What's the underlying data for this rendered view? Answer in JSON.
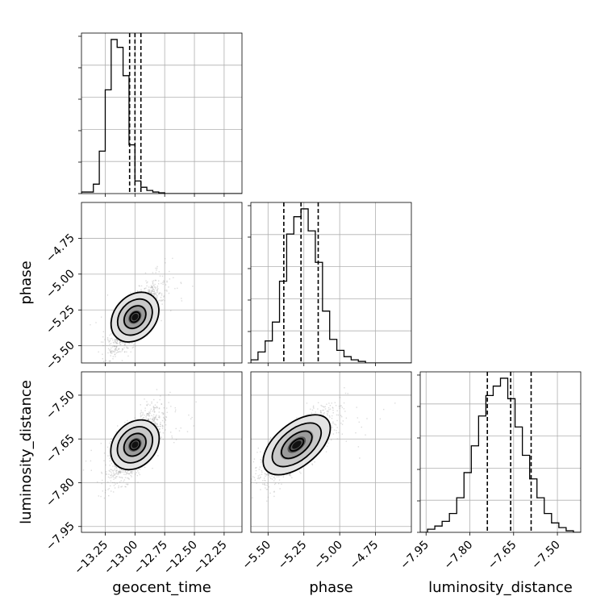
{
  "chart_data": {
    "type": "corner",
    "parameters": [
      {
        "name": "geocent_time",
        "label": "geocent_time",
        "range": [
          -13.45,
          -12.1
        ],
        "ticks": [
          -13.25,
          -13.0,
          -12.75,
          -12.5,
          -12.25
        ],
        "tick_labels": [
          "−13.25",
          "−13.00",
          "−12.75",
          "−12.50",
          "−12.25"
        ],
        "median": -13.0,
        "quantile_low": -13.045,
        "quantile_high": -12.95,
        "histogram": {
          "bin_edges": [
            -13.45,
            -13.4,
            -13.35,
            -13.3,
            -13.25,
            -13.2,
            -13.15,
            -13.1,
            -13.05,
            -13.0,
            -12.95,
            -12.9,
            -12.85,
            -12.8,
            -12.75,
            -12.7,
            -12.65,
            -12.6,
            -12.55,
            -12.5,
            -12.45,
            -12.4,
            -12.35,
            -12.3,
            -12.25,
            -12.2,
            -12.15,
            -12.1
          ],
          "counts": [
            0.01,
            0.01,
            0.06,
            0.27,
            0.66,
            0.98,
            0.93,
            0.75,
            0.31,
            0.08,
            0.04,
            0.02,
            0.01,
            0.005,
            0.0,
            0.0,
            0.0,
            0.0,
            0.0,
            0.0,
            0.0,
            0.0,
            0.0,
            0.0,
            0.0,
            0.0,
            0.0
          ]
        }
      },
      {
        "name": "phase",
        "label": "phase",
        "range": [
          -5.62,
          -4.5
        ],
        "ticks": [
          -5.5,
          -5.25,
          -5.0,
          -4.75
        ],
        "tick_labels": [
          "−5.50",
          "−5.25",
          "−5.00",
          "−4.75"
        ],
        "median": -5.27,
        "quantile_low": -5.39,
        "quantile_high": -5.15,
        "histogram": {
          "bin_edges": [
            -5.62,
            -5.57,
            -5.52,
            -5.47,
            -5.42,
            -5.37,
            -5.32,
            -5.27,
            -5.22,
            -5.17,
            -5.12,
            -5.07,
            -5.02,
            -4.97,
            -4.92,
            -4.87,
            -4.82,
            -4.77,
            -4.72,
            -4.67,
            -4.62,
            -4.57,
            -4.52,
            -4.5
          ],
          "counts": [
            0.02,
            0.07,
            0.14,
            0.26,
            0.52,
            0.82,
            0.93,
            0.98,
            0.84,
            0.64,
            0.33,
            0.15,
            0.08,
            0.04,
            0.02,
            0.01,
            0.0,
            0.0,
            0.0,
            0.0,
            0.0,
            0.0,
            0.0
          ]
        }
      },
      {
        "name": "luminosity_distance",
        "label": "luminosity_distance",
        "range": [
          -7.97,
          -7.42
        ],
        "ticks": [
          -7.95,
          -7.8,
          -7.65,
          -7.5
        ],
        "tick_labels": [
          "−7.95",
          "−7.80",
          "−7.65",
          "−7.50"
        ],
        "median": -7.66,
        "quantile_low": -7.74,
        "quantile_high": -7.59,
        "histogram": {
          "bin_edges": [
            -7.97,
            -7.945,
            -7.92,
            -7.895,
            -7.87,
            -7.845,
            -7.82,
            -7.795,
            -7.77,
            -7.745,
            -7.72,
            -7.695,
            -7.67,
            -7.645,
            -7.62,
            -7.595,
            -7.57,
            -7.545,
            -7.52,
            -7.495,
            -7.47,
            -7.445,
            -7.42
          ],
          "counts": [
            0.0,
            0.02,
            0.04,
            0.07,
            0.12,
            0.22,
            0.38,
            0.55,
            0.74,
            0.87,
            0.93,
            0.98,
            0.85,
            0.67,
            0.49,
            0.34,
            0.22,
            0.12,
            0.06,
            0.03,
            0.01,
            0.0
          ]
        }
      }
    ],
    "pairs": [
      {
        "x": "geocent_time",
        "y": "phase",
        "center": [
          -13.0,
          -5.3
        ],
        "sigma": [
          0.1,
          0.12
        ],
        "rho": 0.8
      },
      {
        "x": "geocent_time",
        "y": "luminosity_distance",
        "center": [
          -13.0,
          -7.67
        ],
        "sigma": [
          0.1,
          0.06
        ],
        "rho": 0.75
      },
      {
        "x": "phase",
        "y": "luminosity_distance",
        "center": [
          -5.3,
          -7.67
        ],
        "sigma": [
          0.12,
          0.06
        ],
        "rho": 0.8
      }
    ],
    "grid": true
  }
}
